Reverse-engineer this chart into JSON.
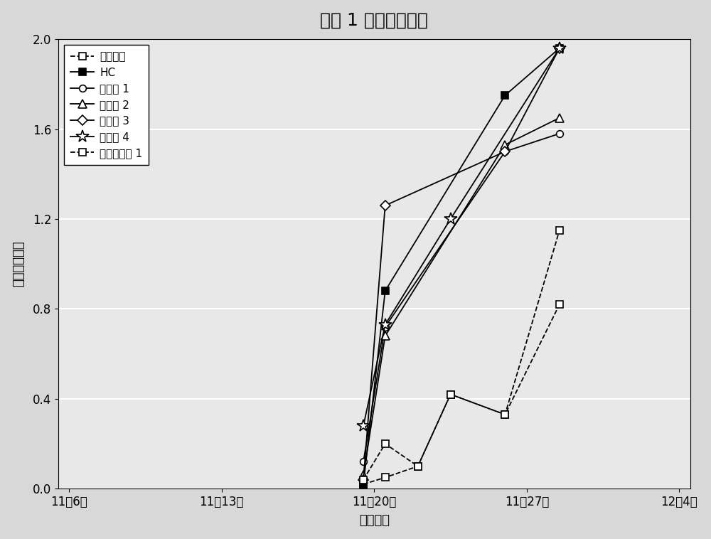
{
  "title": "试验 1 中开花的进展",
  "xlabel": "评估日期",
  "ylabel": "每冬芽开的花",
  "xlim_labels": [
    "11月6日",
    "11月13日",
    "11月20日",
    "11月27日",
    "12月4日"
  ],
  "xtick_positions": [
    0,
    7,
    14,
    21,
    28
  ],
  "ylim": [
    0.0,
    2.0
  ],
  "yticks": [
    0.0,
    0.4,
    0.8,
    1.2,
    1.6,
    2.0
  ],
  "series": [
    {
      "label": "未经处理",
      "marker": "s",
      "filled": false,
      "ls": "--",
      "x": [
        13.5,
        14.5,
        16.0,
        17.5,
        20.0,
        22.5
      ],
      "y": [
        0.02,
        0.05,
        0.1,
        0.42,
        0.33,
        0.82
      ]
    },
    {
      "label": "HC",
      "marker": "s",
      "filled": true,
      "ls": "-",
      "x": [
        13.5,
        14.5,
        20.0,
        22.5
      ],
      "y": [
        0.02,
        0.88,
        1.75,
        1.96
      ]
    },
    {
      "label": "实施例 1",
      "marker": "o",
      "filled": false,
      "ls": "-",
      "x": [
        13.5,
        14.5,
        20.0,
        22.5
      ],
      "y": [
        0.12,
        0.72,
        1.5,
        1.58
      ]
    },
    {
      "label": "实施例 2",
      "marker": "^",
      "filled": false,
      "ls": "-",
      "x": [
        13.5,
        14.5,
        20.0,
        22.5
      ],
      "y": [
        0.06,
        0.68,
        1.53,
        1.65
      ]
    },
    {
      "label": "实施例 3",
      "marker": "D",
      "filled": false,
      "ls": "-",
      "x": [
        13.5,
        14.5,
        20.0,
        22.5
      ],
      "y": [
        0.04,
        1.26,
        1.5,
        1.96
      ]
    },
    {
      "label": "实施例 4",
      "marker": "*",
      "filled": false,
      "ls": "-",
      "x": [
        13.5,
        14.5,
        17.5,
        22.5
      ],
      "y": [
        0.28,
        0.73,
        1.2,
        1.96
      ]
    },
    {
      "label": "比较实施例 1",
      "marker": "s",
      "filled": false,
      "ls": "--",
      "x": [
        13.5,
        14.5,
        16.0,
        17.5,
        20.0,
        22.5
      ],
      "y": [
        0.04,
        0.2,
        0.1,
        0.42,
        0.33,
        1.15
      ]
    }
  ],
  "bg_color": "#d8d8d8",
  "plot_bg": "#e8e8e8",
  "grid_color": "#ffffff",
  "title_fontsize": 18,
  "axis_label_fontsize": 13,
  "tick_fontsize": 12,
  "legend_fontsize": 11
}
